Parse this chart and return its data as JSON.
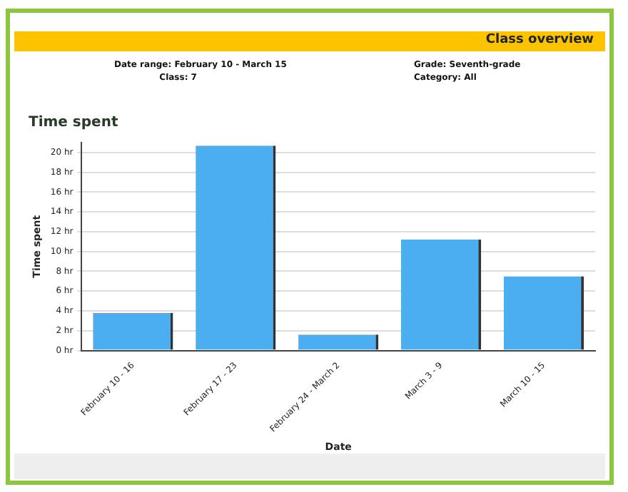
{
  "chart_data": {
    "type": "bar",
    "title": "Time spent",
    "ylabel": "Time spent",
    "xlabel": "Date",
    "categories": [
      "February 10 - 16",
      "February 17 - 23",
      "February 24 - March 2",
      "March 3 - 9",
      "March 10 - 15"
    ],
    "values": [
      3.8,
      20.7,
      1.6,
      11.2,
      7.5
    ],
    "color": "#4aaef0",
    "ylim": [
      0,
      21
    ],
    "yticks": [
      {
        "value": 0,
        "label": "0 hr"
      },
      {
        "value": 2,
        "label": "2 hr"
      },
      {
        "value": 4,
        "label": "4 hr"
      },
      {
        "value": 6,
        "label": "6 hr"
      },
      {
        "value": 8,
        "label": "8 hr"
      },
      {
        "value": 10,
        "label": "10 hr"
      },
      {
        "value": 12,
        "label": "12 hr"
      },
      {
        "value": 14,
        "label": "14 hr"
      },
      {
        "value": 16,
        "label": "16 hr"
      },
      {
        "value": 18,
        "label": "18 hr"
      },
      {
        "value": 20,
        "label": "20 hr"
      }
    ],
    "grid": "y",
    "legend": false,
    "annotations": [
      "Class overview",
      "Date range: February 10 - March 15",
      "Class: 7",
      "Grade: Seventh-grade",
      "Category: All"
    ]
  }
}
